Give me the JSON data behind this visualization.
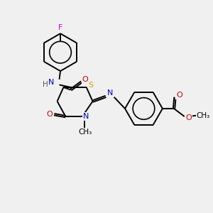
{
  "bg_color": "#f0f0f0",
  "atom_colors": {
    "C": "#000000",
    "N": "#0000cc",
    "O": "#cc0000",
    "S": "#ccaa00",
    "F": "#cc00cc",
    "H": "#555555"
  },
  "bond_color": "#000000",
  "figsize": [
    3.0,
    3.0
  ],
  "dpi": 100
}
